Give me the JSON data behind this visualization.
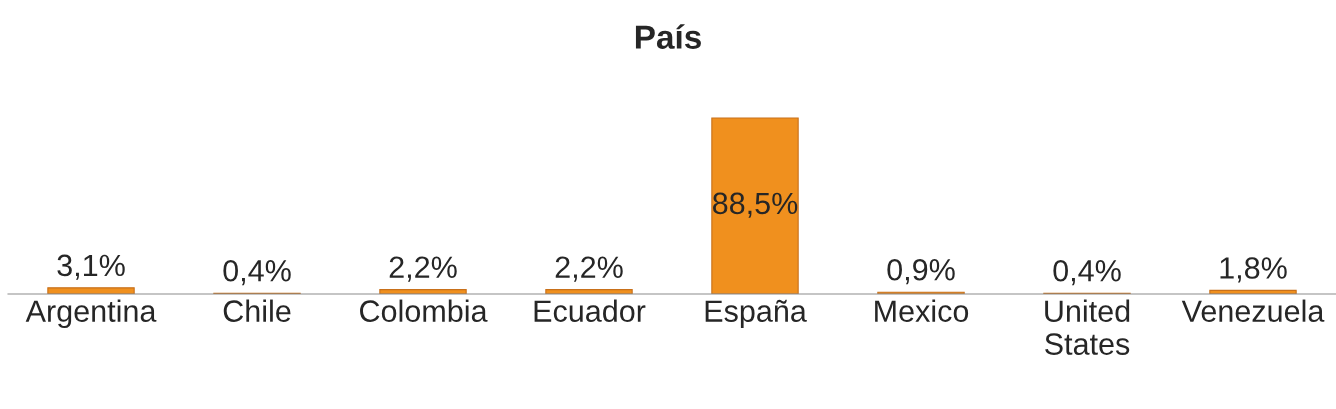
{
  "chart_data": {
    "type": "bar",
    "title": "País",
    "categories": [
      "Argentina",
      "Chile",
      "Colombia",
      "Ecuador",
      "España",
      "Mexico",
      "United States",
      "Venezuela"
    ],
    "values": [
      3.1,
      0.4,
      2.2,
      2.2,
      88.5,
      0.9,
      0.4,
      1.8
    ],
    "value_labels": [
      "3,1%",
      "0,4%",
      "2,2%",
      "2,2%",
      "88,5%",
      "0,9%",
      "0,4%",
      "1,8%"
    ],
    "color": "#f0901e",
    "grid": false,
    "legend": false
  }
}
